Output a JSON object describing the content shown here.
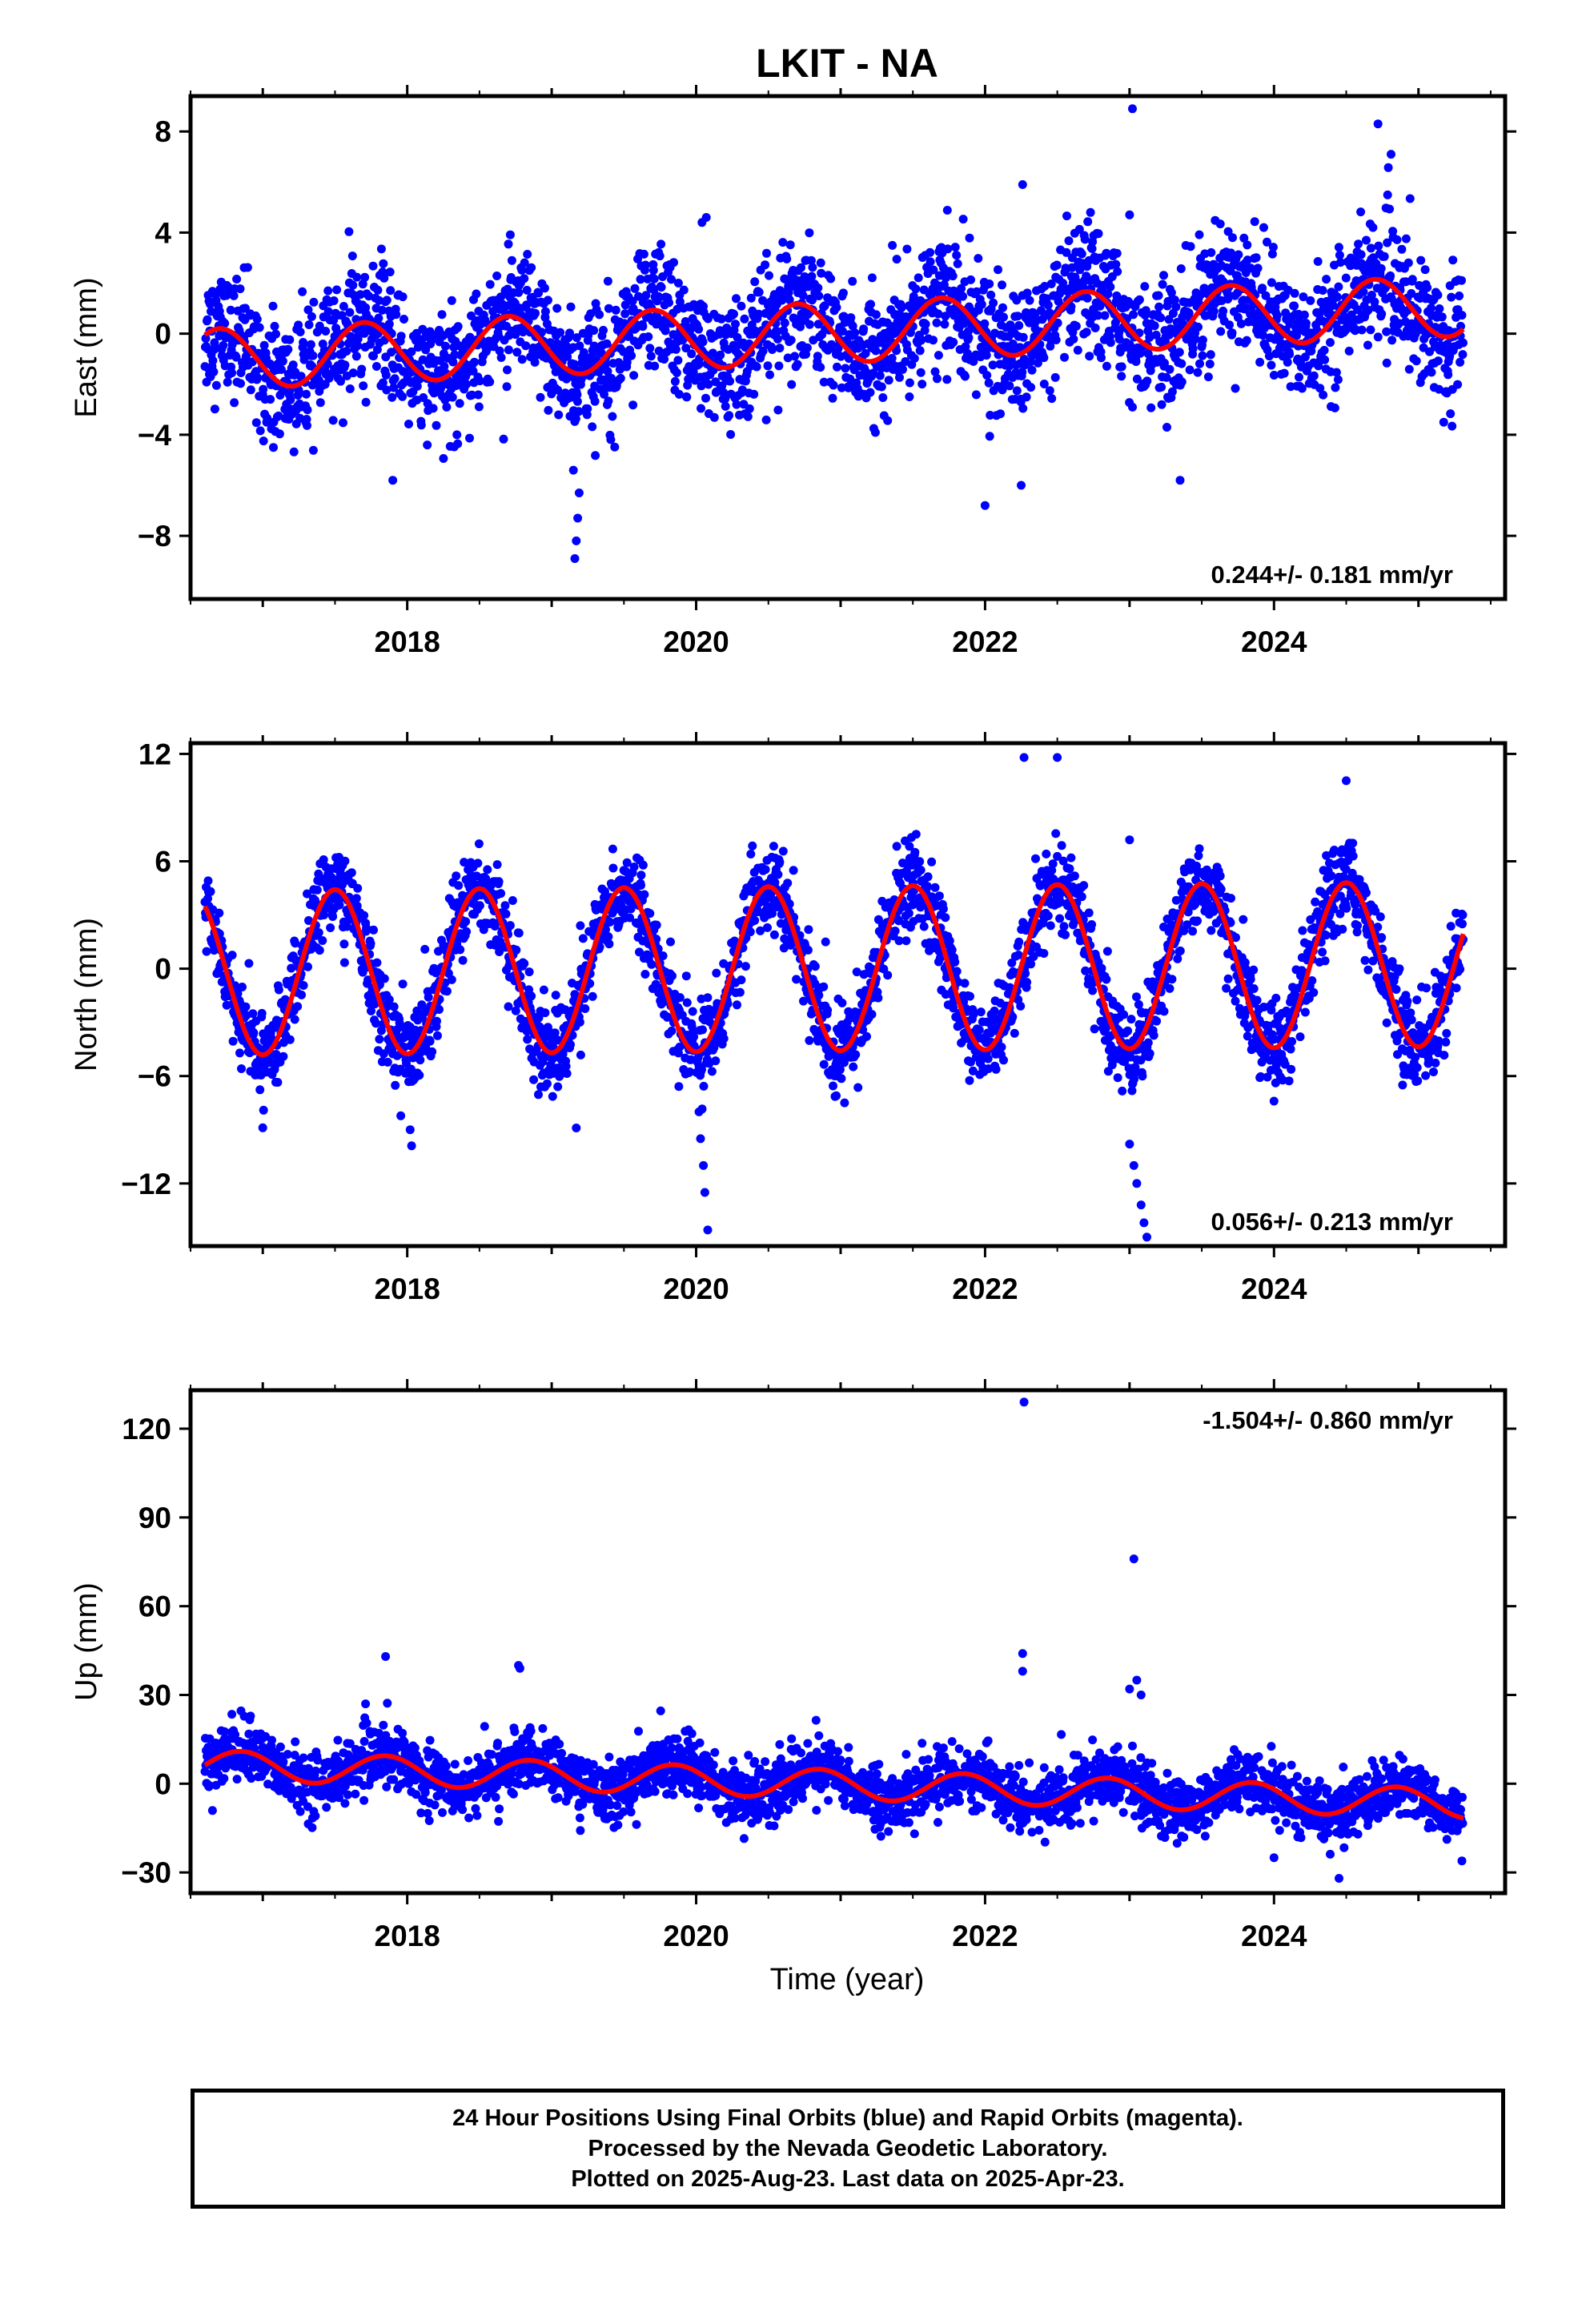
{
  "title": "LKIT - NA",
  "xlabel": "Time (year)",
  "footer": {
    "line1": "24 Hour Positions Using Final Orbits (blue) and Rapid Orbits (magenta).",
    "line2": "Processed by the Nevada Geodetic Laboratory.",
    "line3": "Plotted on 2025-Aug-23. Last data on 2025-Apr-23."
  },
  "colors": {
    "points": "#0000ff",
    "fit": "#ff0000",
    "axes": "#000000"
  },
  "chart_data": [
    {
      "type": "scatter",
      "panel": "east",
      "ylabel": "East (mm)",
      "rate_label": "0.244+/- 0.181 mm/yr",
      "xlim": [
        2016.5,
        2025.6
      ],
      "ylim": [
        -10.5,
        9.4
      ],
      "xticks": [
        2018,
        2020,
        2022,
        2024
      ],
      "yticks": [
        -8,
        -4,
        0,
        4,
        8
      ],
      "yticklabels": [
        "−8",
        "−4",
        "0",
        "4",
        "8"
      ],
      "series": [
        {
          "kind": "daily_positions",
          "x_range": [
            2016.6,
            2025.31
          ],
          "trend_mm_per_yr": 0.244,
          "annual_amp_mm": 1.2,
          "annual_peak": 0.7,
          "scatter_mm": 1.2,
          "outliers": [
            [
              2019.16,
              -8.9
            ],
            [
              2019.17,
              -8.2
            ],
            [
              2019.18,
              -7.3
            ],
            [
              2019.19,
              -6.3
            ],
            [
              2019.15,
              -5.4
            ],
            [
              2023.02,
              8.9
            ],
            [
              2022.0,
              -6.8
            ],
            [
              2022.25,
              -6.0
            ],
            [
              2022.26,
              5.9
            ],
            [
              2017.9,
              -5.8
            ],
            [
              2023.35,
              -5.8
            ],
            [
              2024.72,
              8.3
            ],
            [
              2024.81,
              7.1
            ],
            [
              2023.0,
              4.7
            ],
            [
              2020.07,
              4.6
            ],
            [
              2020.04,
              4.4
            ]
          ]
        },
        {
          "kind": "fit",
          "trend_mm_per_yr": 0.244,
          "annual_amp_mm": 1.2,
          "annual_peak": 0.7,
          "x": [
            2016.6,
            2025.31
          ]
        }
      ]
    },
    {
      "type": "scatter",
      "panel": "north",
      "ylabel": "North (mm)",
      "rate_label": "0.056+/- 0.213 mm/yr",
      "xlim": [
        2016.5,
        2025.6
      ],
      "ylim": [
        -15.5,
        12.6
      ],
      "xticks": [
        2018,
        2020,
        2022,
        2024
      ],
      "yticks": [
        -12,
        -6,
        0,
        6,
        12
      ],
      "yticklabels": [
        "−12",
        "−6",
        "0",
        "6",
        "12"
      ],
      "series": [
        {
          "kind": "daily_positions",
          "x_range": [
            2016.6,
            2025.31
          ],
          "trend_mm_per_yr": 0.056,
          "annual_amp_mm": 4.6,
          "annual_peak": 0.5,
          "scatter_mm": 1.2,
          "outliers": [
            [
              2020.02,
              -8.0
            ],
            [
              2020.03,
              -9.5
            ],
            [
              2020.05,
              -11.0
            ],
            [
              2020.06,
              -12.5
            ],
            [
              2020.08,
              -14.6
            ],
            [
              2023.05,
              -12.0
            ],
            [
              2023.08,
              -13.2
            ],
            [
              2023.1,
              -14.2
            ],
            [
              2023.12,
              -15.0
            ],
            [
              2023.03,
              -11.0
            ],
            [
              2023.0,
              -9.8
            ],
            [
              2022.27,
              11.8
            ],
            [
              2022.5,
              11.8
            ],
            [
              2018.02,
              -9.0
            ],
            [
              2018.03,
              -9.9
            ],
            [
              2019.17,
              -8.9
            ],
            [
              2024.0,
              -7.4
            ],
            [
              2024.9,
              -5.9
            ],
            [
              2024.5,
              10.5
            ],
            [
              2023.0,
              7.2
            ]
          ]
        },
        {
          "kind": "fit",
          "trend_mm_per_yr": 0.056,
          "annual_amp_mm": 4.6,
          "annual_peak": 0.5,
          "x": [
            2016.6,
            2025.31
          ]
        }
      ]
    },
    {
      "type": "scatter",
      "panel": "up",
      "ylabel": "Up (mm)",
      "rate_label": "-1.504+/- 0.860 mm/yr",
      "xlim": [
        2016.5,
        2025.6
      ],
      "ylim": [
        -37,
        133
      ],
      "xticks": [
        2018,
        2020,
        2022,
        2024
      ],
      "yticks": [
        -30,
        0,
        30,
        60,
        90,
        120
      ],
      "yticklabels": [
        "−30",
        "0",
        "30",
        "60",
        "90",
        "120"
      ],
      "series": [
        {
          "kind": "daily_positions",
          "x_range": [
            2016.6,
            2025.31
          ],
          "trend_mm_per_yr": -1.504,
          "annual_amp_mm": 5.0,
          "annual_peak": 0.85,
          "scatter_mm": 5.0,
          "outliers": [
            [
              2022.27,
              129.0
            ],
            [
              2023.03,
              76.0
            ],
            [
              2022.26,
              44.0
            ],
            [
              2022.26,
              38.0
            ],
            [
              2017.85,
              43.0
            ],
            [
              2018.77,
              40.0
            ],
            [
              2018.78,
              39.0
            ],
            [
              2023.05,
              35.0
            ],
            [
              2023.0,
              32.0
            ],
            [
              2023.08,
              30.0
            ],
            [
              2024.0,
              -25.0
            ],
            [
              2024.45,
              -32.0
            ]
          ]
        },
        {
          "kind": "fit",
          "trend_mm_per_yr": -1.504,
          "annual_amp_mm": 5.0,
          "annual_peak": 0.85,
          "x": [
            2016.6,
            2025.31
          ]
        }
      ]
    }
  ]
}
